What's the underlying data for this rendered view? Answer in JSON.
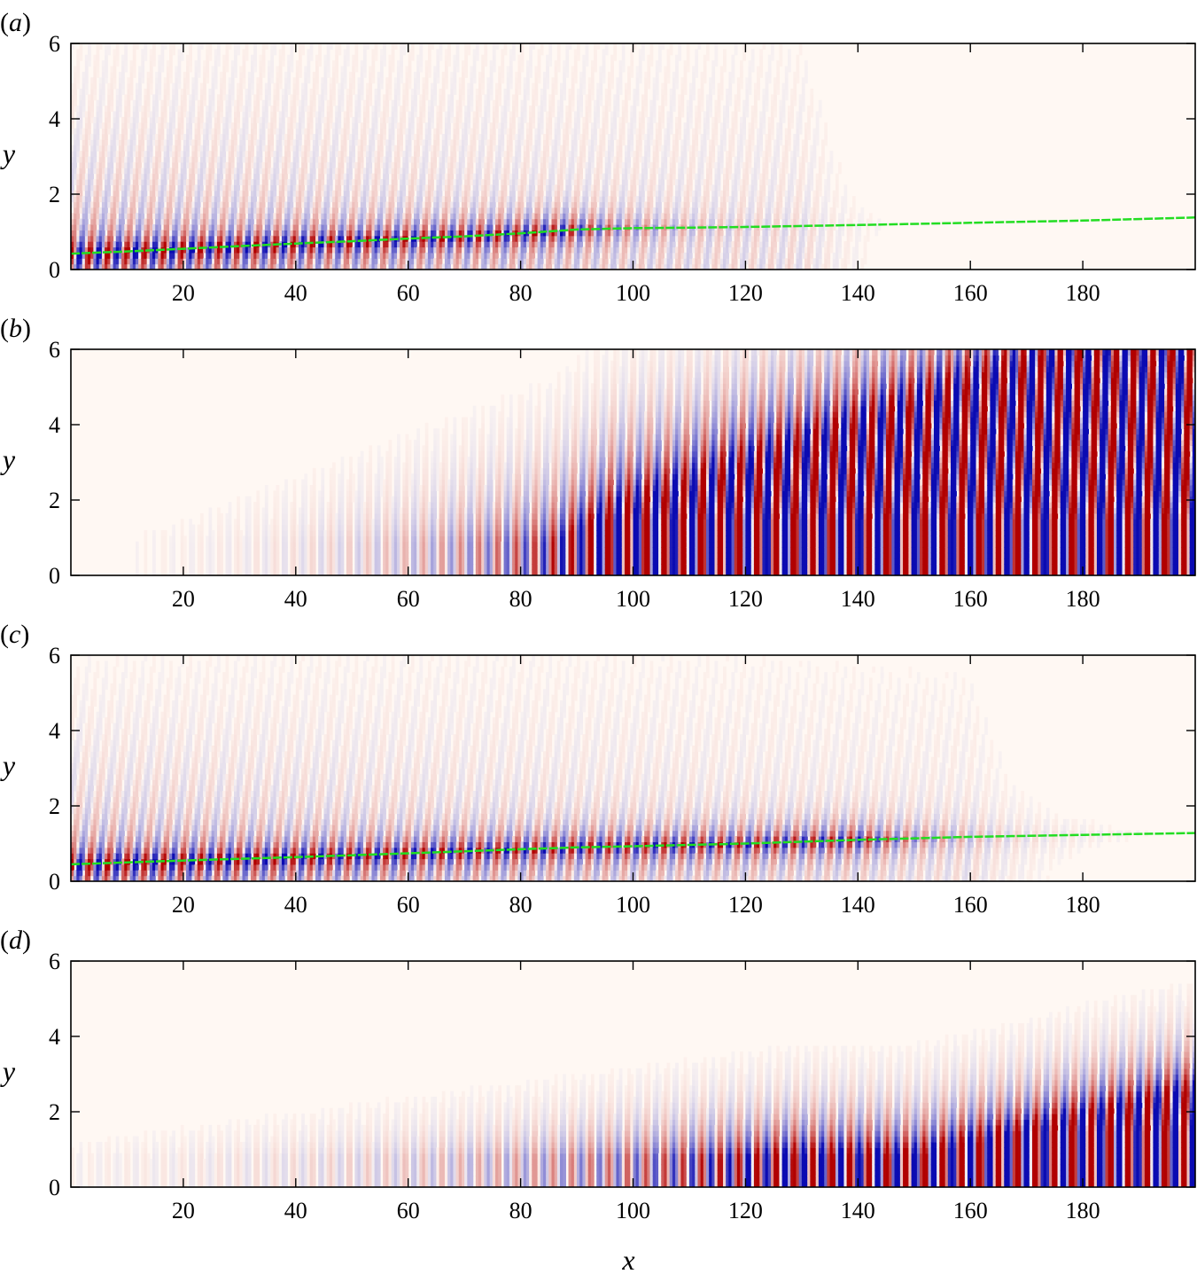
{
  "figure": {
    "panel_order": [
      "a",
      "b",
      "c",
      "d"
    ],
    "colors": {
      "background": "#fff8f3",
      "positive": "#b10000",
      "negative": "#0b0bb2",
      "interface_line": "#22dd22",
      "axis": "#000000"
    }
  },
  "chart_data": [
    {
      "type": "heatmap",
      "panel_label": "(a)",
      "label_letter": "a",
      "xlabel": "",
      "ylabel": "y",
      "xlim": [
        0,
        200
      ],
      "ylim": [
        0,
        6
      ],
      "xticks": [
        20,
        40,
        60,
        80,
        100,
        120,
        140,
        160,
        180
      ],
      "yticks": [
        0,
        2,
        4,
        6
      ],
      "colormap": "blue-white-red",
      "green_line": {
        "x": [
          0,
          10,
          20,
          30,
          40,
          50,
          60,
          70,
          80,
          90,
          100,
          110,
          120,
          140,
          160,
          180,
          200
        ],
        "y": [
          0.42,
          0.48,
          0.55,
          0.62,
          0.69,
          0.75,
          0.82,
          0.88,
          0.96,
          1.06,
          1.1,
          1.11,
          1.13,
          1.18,
          1.24,
          1.3,
          1.38
        ]
      }
    },
    {
      "type": "heatmap",
      "panel_label": "(b)",
      "label_letter": "b",
      "xlabel": "",
      "ylabel": "y",
      "xlim": [
        0,
        200
      ],
      "ylim": [
        0,
        6
      ],
      "xticks": [
        20,
        40,
        60,
        80,
        100,
        120,
        140,
        160,
        180
      ],
      "yticks": [
        0,
        2,
        4,
        6
      ],
      "colormap": "blue-white-red"
    },
    {
      "type": "heatmap",
      "panel_label": "(c)",
      "label_letter": "c",
      "xlabel": "",
      "ylabel": "y",
      "xlim": [
        0,
        200
      ],
      "ylim": [
        0,
        6
      ],
      "xticks": [
        20,
        40,
        60,
        80,
        100,
        120,
        140,
        160,
        180
      ],
      "yticks": [
        0,
        2,
        4,
        6
      ],
      "colormap": "blue-white-red",
      "green_line": {
        "x": [
          0,
          20,
          40,
          60,
          80,
          90,
          100,
          120,
          140,
          160,
          180,
          200
        ],
        "y": [
          0.45,
          0.55,
          0.64,
          0.74,
          0.85,
          0.9,
          0.93,
          1.0,
          1.1,
          1.18,
          1.23,
          1.28
        ]
      }
    },
    {
      "type": "heatmap",
      "panel_label": "(d)",
      "label_letter": "d",
      "xlabel": "x",
      "ylabel": "y",
      "xlim": [
        0,
        200
      ],
      "ylim": [
        0,
        6
      ],
      "xticks": [
        20,
        40,
        60,
        80,
        100,
        120,
        140,
        160,
        180
      ],
      "yticks": [
        0,
        2,
        4,
        6
      ],
      "colormap": "blue-white-red"
    }
  ]
}
